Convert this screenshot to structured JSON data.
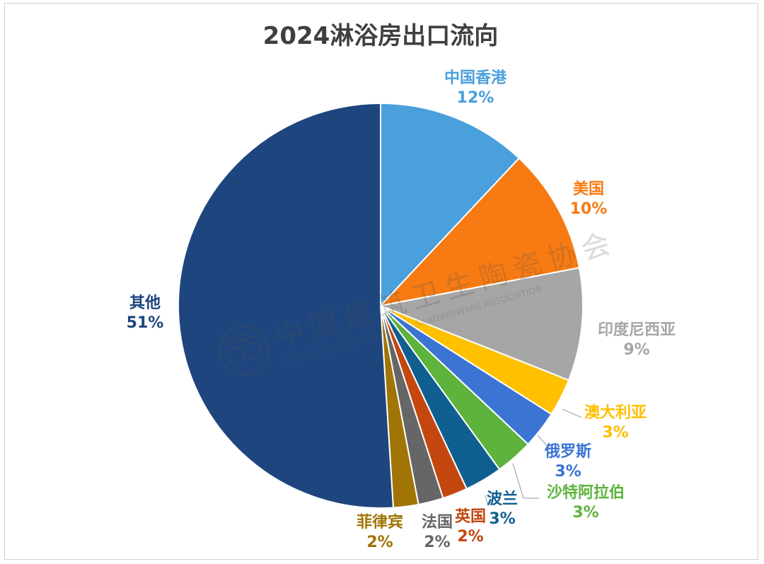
{
  "chart_data": {
    "type": "pie",
    "title": "2024淋浴房出口流向",
    "slices": [
      {
        "label": "中国香港",
        "value": 12,
        "value_label": "12%",
        "color": "#4a9fdd"
      },
      {
        "label": "美国",
        "value": 10,
        "value_label": "10%",
        "color": "#f77a12"
      },
      {
        "label": "印度尼西亚",
        "value": 9,
        "value_label": "9%",
        "color": "#a6a6a6"
      },
      {
        "label": "澳大利亚",
        "value": 3,
        "value_label": "3%",
        "color": "#ffc000"
      },
      {
        "label": "俄罗斯",
        "value": 3,
        "value_label": "3%",
        "color": "#3b74d2"
      },
      {
        "label": "沙特阿拉伯",
        "value": 3,
        "value_label": "3%",
        "color": "#5db33c"
      },
      {
        "label": "波兰",
        "value": 3,
        "value_label": "3%",
        "color": "#0f5f91"
      },
      {
        "label": "英国",
        "value": 2,
        "value_label": "2%",
        "color": "#c4470f"
      },
      {
        "label": "法国",
        "value": 2,
        "value_label": "2%",
        "color": "#666666"
      },
      {
        "label": "菲律宾",
        "value": 2,
        "value_label": "2%",
        "color": "#a07505"
      },
      {
        "label": "其他",
        "value": 51,
        "value_label": "51%",
        "color": "#1e457d"
      }
    ]
  },
  "watermark": {
    "text_cn": "中国建筑卫生陶瓷协会",
    "text_en": "CHINA BUILDING CERAMICS & SANITARYWARE ASSOCIATION"
  }
}
